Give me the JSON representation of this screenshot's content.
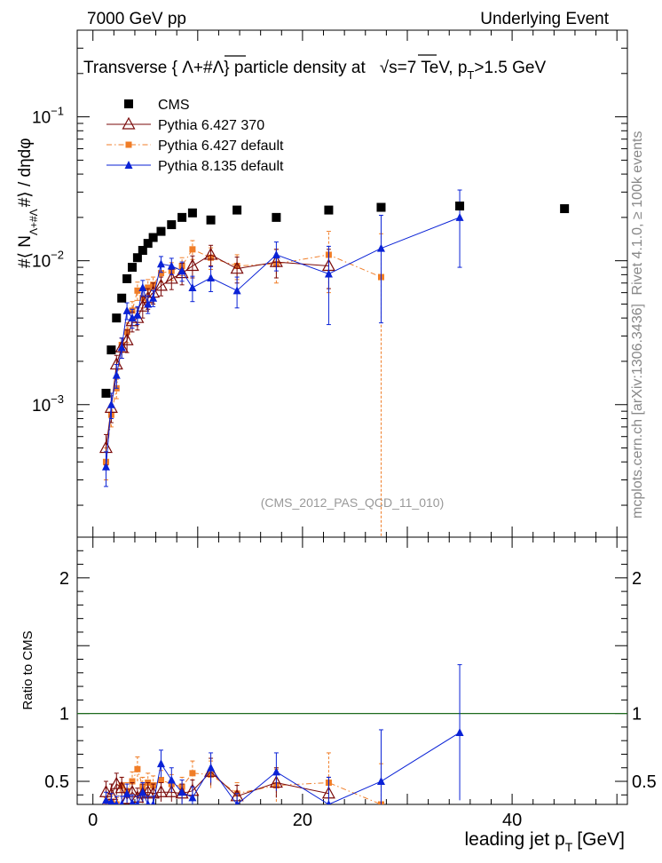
{
  "header": {
    "left": "7000 GeV pp",
    "right": "Underlying Event"
  },
  "side_labels": {
    "rivet": "Rivet 4.1.0, ≥ 100k events",
    "mcplots": "mcplots.cern.ch [arXiv:1306.3436]"
  },
  "chart_data": {
    "type": "scatter",
    "title": "Transverse { Λ+#Λ̅} particle density at  √s=7 TeV, p_T>1.5 GeV",
    "title_parts": {
      "main": "Transverse { Λ+#Λ} particle density at",
      "energy": "√s=7 TeV, p",
      "sub": "T",
      "cut": ">1.5 GeV"
    },
    "ylabel_parts": {
      "prefix": "#⟨ N",
      "sub": "Λ+#Λ",
      "suffix": "#⟩ / dηdφ"
    },
    "xlabel_parts": {
      "main": "leading jet p",
      "sub": "T",
      "unit": "[GeV]"
    },
    "ratio_ylabel": "Ratio to CMS",
    "analysis_tag": "(CMS_2012_PAS_QCD_11_010)",
    "xlim": [
      -1.5,
      51
    ],
    "ylim": [
      0.00012,
      0.4
    ],
    "yscale": "log",
    "ratio_ylim": [
      0.33,
      2.3
    ],
    "x_ticks": [
      0,
      20,
      40
    ],
    "y_ticks": [
      {
        "value": 0.001,
        "base": "10",
        "exp": "−3"
      },
      {
        "value": 0.01,
        "base": "10",
        "exp": "−2"
      },
      {
        "value": 0.1,
        "base": "10",
        "exp": "−1"
      }
    ],
    "ratio_ticks": [
      {
        "value": 0.5,
        "label": "0.5"
      },
      {
        "value": 1,
        "label": "1"
      },
      {
        "value": 2,
        "label": "2"
      }
    ],
    "legend": [
      {
        "name": "CMS",
        "marker": "square",
        "color": "#000000",
        "line": false
      },
      {
        "name": "Pythia 6.427 370",
        "marker": "triangle-open",
        "color": "#7a0a0a",
        "line": true
      },
      {
        "name": "Pythia 6.427 default",
        "marker": "square-small",
        "color": "#f07d27",
        "line": true,
        "dashed": true
      },
      {
        "name": "Pythia 8.135 default",
        "marker": "triangle",
        "color": "#0a22d6",
        "line": true
      }
    ],
    "cms": {
      "x": [
        1.25,
        1.75,
        2.25,
        2.75,
        3.25,
        3.75,
        4.25,
        4.75,
        5.25,
        5.75,
        6.5,
        7.5,
        8.5,
        9.5,
        11.25,
        13.75,
        17.5,
        22.5,
        27.5,
        35,
        45
      ],
      "y": [
        0.0012,
        0.0024,
        0.004,
        0.0055,
        0.0075,
        0.009,
        0.0105,
        0.0118,
        0.0132,
        0.0145,
        0.016,
        0.0178,
        0.02,
        0.0215,
        0.0192,
        0.0225,
        0.02,
        0.0225,
        0.0235,
        0.024,
        0.023
      ]
    },
    "series": [
      {
        "name": "Pythia 6.427 370",
        "x": [
          1.25,
          1.75,
          2.25,
          2.75,
          3.25,
          3.75,
          4.25,
          4.75,
          5.25,
          5.75,
          6.5,
          7.5,
          8.5,
          9.5,
          11.25,
          13.75,
          17.5,
          22.5
        ],
        "y": [
          0.0005,
          0.00095,
          0.0019,
          0.0025,
          0.0028,
          0.0038,
          0.004,
          0.0048,
          0.0055,
          0.006,
          0.0067,
          0.0075,
          0.0082,
          0.0092,
          0.011,
          0.0088,
          0.0098,
          0.0092
        ],
        "err": [
          0.00012,
          0.0002,
          0.0003,
          0.0004,
          0.0005,
          0.0006,
          0.0007,
          0.0008,
          0.0009,
          0.001,
          0.001,
          0.0012,
          0.0014,
          0.0016,
          0.0018,
          0.0018,
          0.0022,
          0.0028
        ],
        "ratio": [
          0.42,
          0.4,
          0.48,
          0.45,
          0.37,
          0.42,
          0.38,
          0.41,
          0.42,
          0.41,
          0.42,
          0.42,
          0.41,
          0.43,
          0.57,
          0.39,
          0.49,
          0.41
        ],
        "ratio_err": [
          0.08,
          0.08,
          0.08,
          0.08,
          0.07,
          0.07,
          0.07,
          0.07,
          0.07,
          0.07,
          0.07,
          0.07,
          0.07,
          0.08,
          0.1,
          0.08,
          0.11,
          0.12
        ]
      },
      {
        "name": "Pythia 6.427 default",
        "x": [
          1.25,
          1.75,
          2.25,
          2.75,
          3.25,
          3.75,
          4.25,
          4.75,
          5.25,
          5.75,
          6.5,
          7.5,
          8.5,
          9.5,
          11.25,
          13.75,
          17.5,
          22.5,
          27.5
        ],
        "y": [
          0.0004,
          0.00085,
          0.0013,
          0.0026,
          0.0032,
          0.0045,
          0.0062,
          0.0055,
          0.0065,
          0.0068,
          0.0082,
          0.0085,
          0.0092,
          0.012,
          0.0105,
          0.0092,
          0.0095,
          0.011,
          0.0077
        ],
        "err": [
          0.0001,
          0.00015,
          0.0002,
          0.0003,
          0.0005,
          0.0007,
          0.0009,
          0.0008,
          0.0009,
          0.0009,
          0.0011,
          0.0012,
          0.0013,
          0.0018,
          0.0018,
          0.0018,
          0.0025,
          0.005,
          0.0077
        ],
        "ratio": [
          0.33,
          0.35,
          0.33,
          0.47,
          0.43,
          0.5,
          0.59,
          0.46,
          0.49,
          0.47,
          0.51,
          0.48,
          0.46,
          0.56,
          0.55,
          0.41,
          0.47,
          0.49,
          0.33
        ],
        "ratio_err": [
          0.05,
          0.05,
          0.05,
          0.06,
          0.06,
          0.07,
          0.09,
          0.07,
          0.07,
          0.07,
          0.07,
          0.07,
          0.07,
          0.09,
          0.1,
          0.08,
          0.12,
          0.22,
          0.3
        ]
      },
      {
        "name": "Pythia 8.135 default",
        "x": [
          1.25,
          1.75,
          2.25,
          2.75,
          3.25,
          3.75,
          4.25,
          4.75,
          5.25,
          5.75,
          6.5,
          7.5,
          8.5,
          9.5,
          11.25,
          13.75,
          17.5,
          22.5,
          27.5,
          35
        ],
        "y": [
          0.00037,
          0.001,
          0.0016,
          0.0025,
          0.0045,
          0.004,
          0.0042,
          0.0065,
          0.005,
          0.0055,
          0.0095,
          0.0092,
          0.0085,
          0.0065,
          0.0076,
          0.0062,
          0.011,
          0.0081,
          0.0122,
          0.02
        ],
        "err": [
          0.0001,
          0.0002,
          0.0003,
          0.0004,
          0.0006,
          0.0006,
          0.0006,
          0.0008,
          0.0007,
          0.0007,
          0.0012,
          0.0012,
          0.0013,
          0.0013,
          0.0015,
          0.0015,
          0.0025,
          0.0045,
          0.0085,
          0.011
        ],
        "ratio": [
          0.36,
          0.35,
          0.33,
          0.33,
          0.41,
          0.34,
          0.33,
          0.42,
          0.33,
          0.33,
          0.63,
          0.51,
          0.42,
          0.38,
          0.6,
          0.33,
          0.57,
          0.33,
          0.5,
          0.86
        ],
        "ratio_err": [
          0.06,
          0.06,
          0.06,
          0.06,
          0.07,
          0.06,
          0.06,
          0.07,
          0.06,
          0.06,
          0.1,
          0.09,
          0.09,
          0.08,
          0.11,
          0.08,
          0.14,
          0.2,
          0.38,
          0.5
        ]
      }
    ]
  }
}
